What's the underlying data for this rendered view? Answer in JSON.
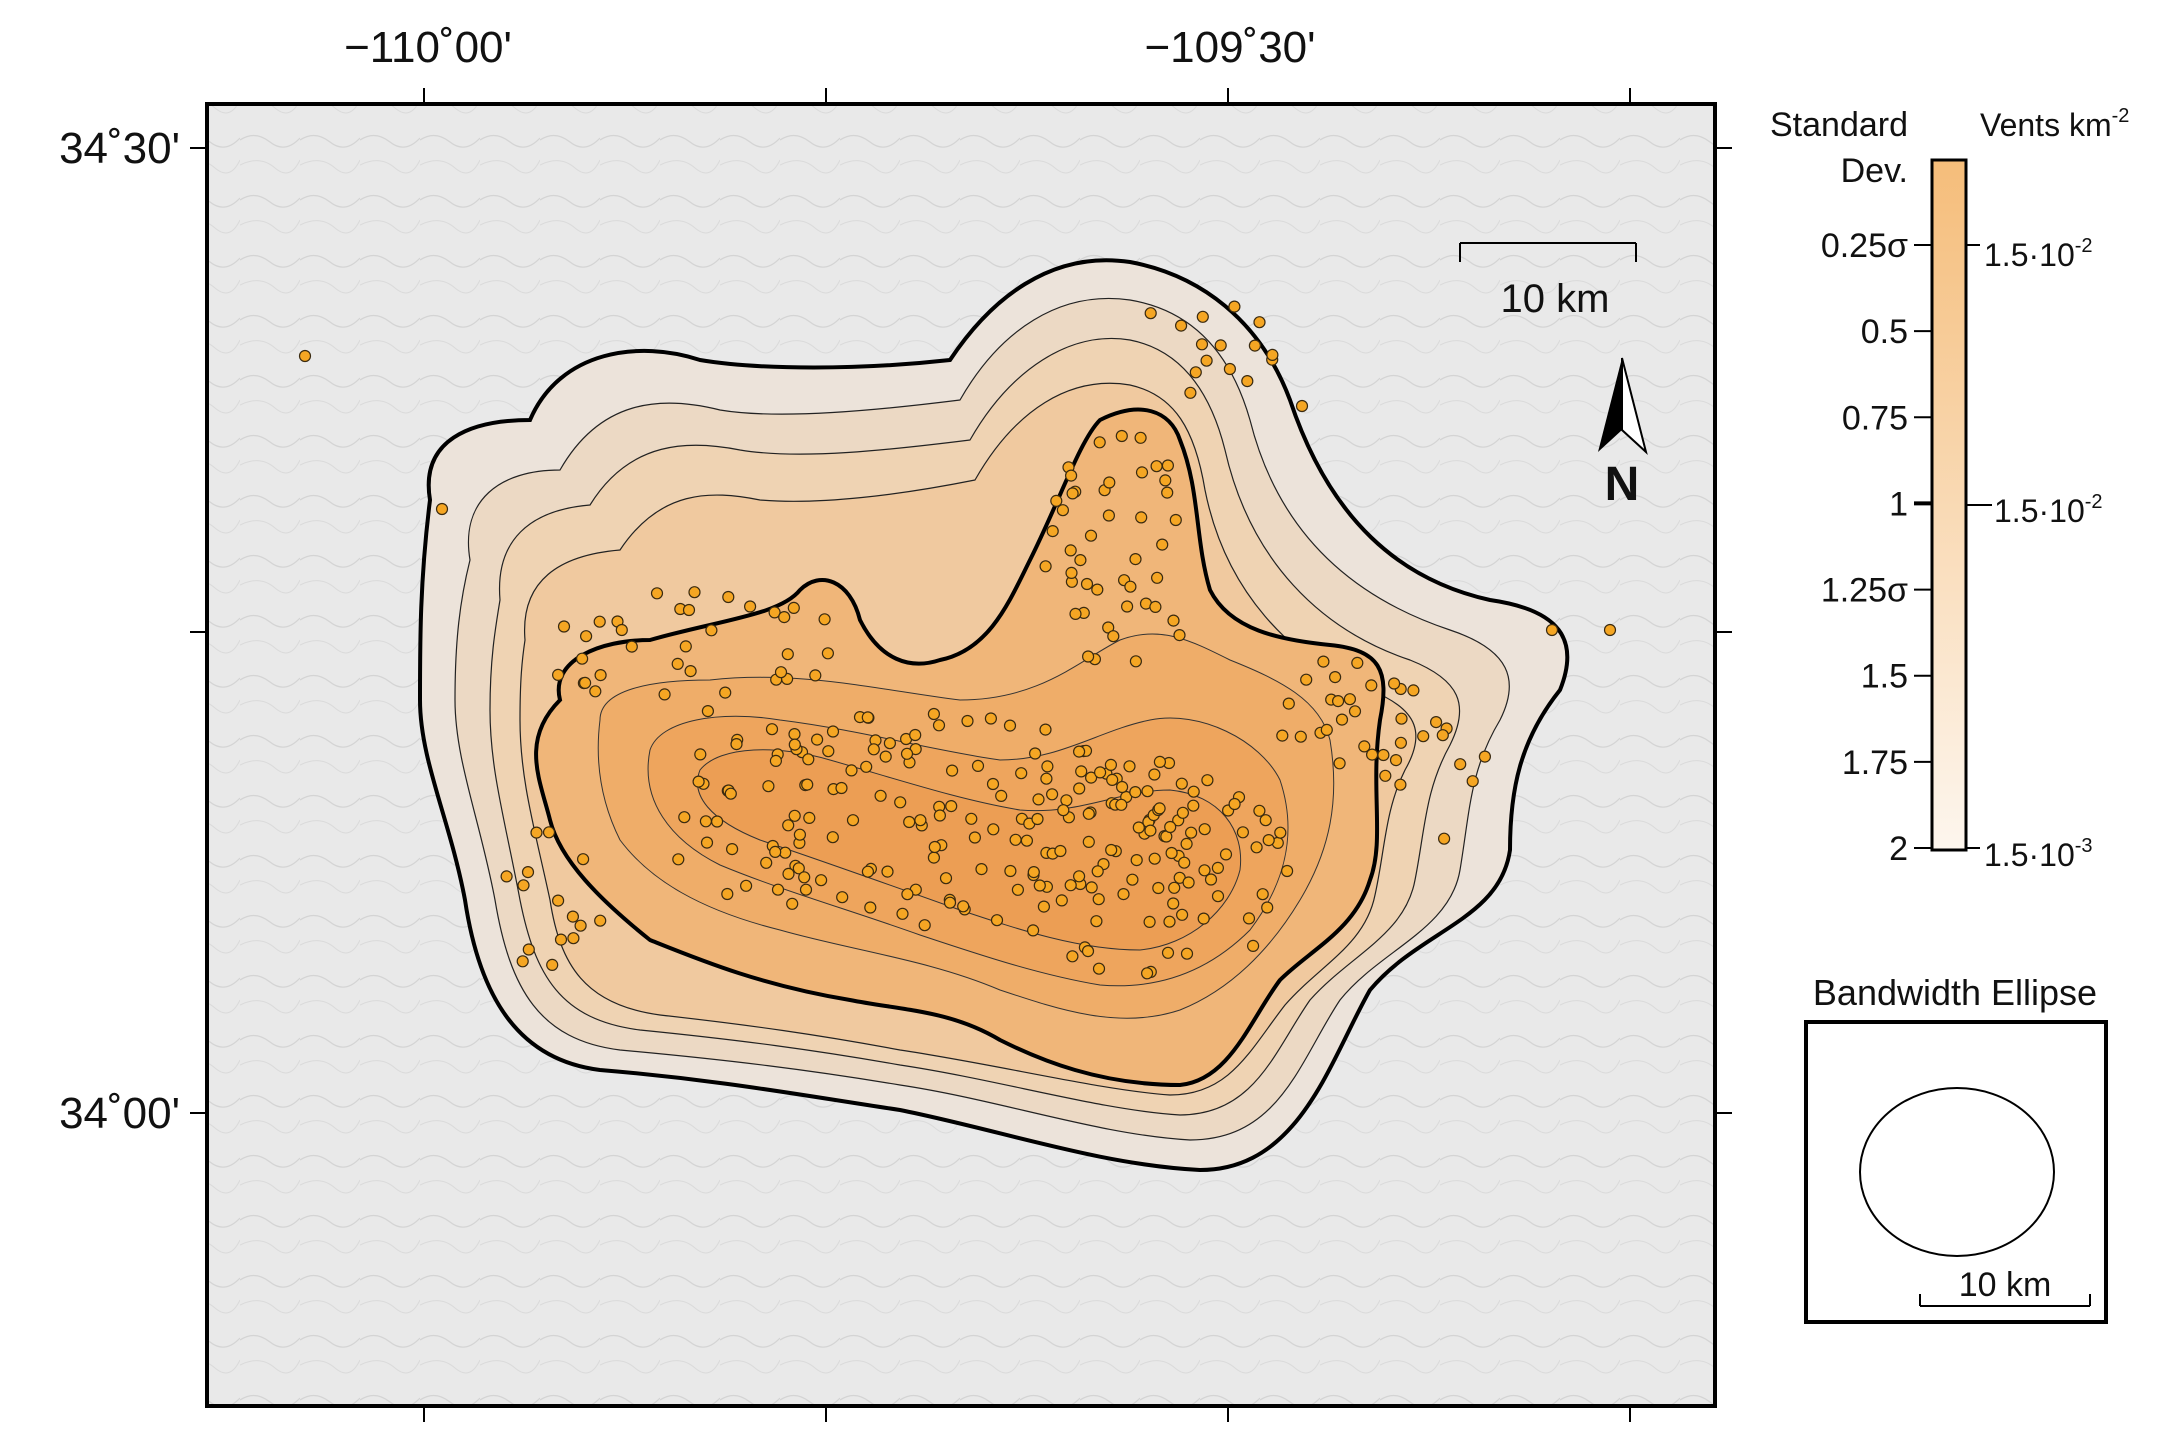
{
  "map": {
    "axis_labels": {
      "top_left": "−110˚00'",
      "top_right": "−109˚30'",
      "left_top": "34˚30'",
      "left_bottom": "34˚00'"
    },
    "scale_bar_label": "10 km",
    "north_arrow_label": "N",
    "contour_color": "#f0a64e",
    "vent_color": "#f5a623"
  },
  "legend": {
    "std_dev_title_line1": "Standard",
    "std_dev_title_line2": "Dev.",
    "density_title": "Vents km",
    "density_title_exp": "-2",
    "std_dev_ticks": [
      "0.25σ",
      "0.5",
      "0.75",
      "1",
      "1.25σ",
      "1.5",
      "1.75",
      "2"
    ],
    "density_ticks": [
      {
        "base": "1.5·10",
        "exp": "-2"
      },
      {
        "base": "1.5·10",
        "exp": "-2"
      },
      {
        "base": "1.5·10",
        "exp": "-3"
      }
    ],
    "colorbar_top_color": "#f5bd7a",
    "colorbar_bottom_color": "#fdf6ee"
  },
  "bandwidth": {
    "title": "Bandwidth Ellipse",
    "scale_label": "10 km"
  }
}
